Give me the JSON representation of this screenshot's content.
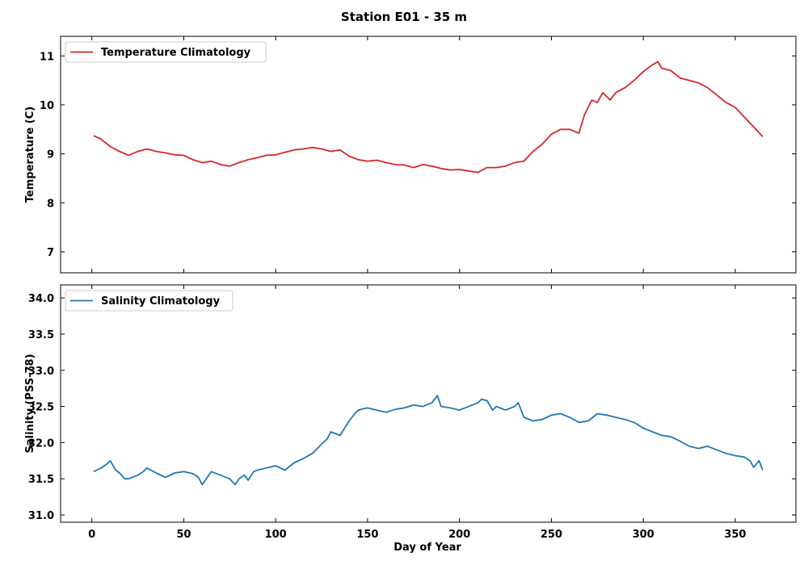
{
  "figure_title": "Station E01 - 35 m",
  "chart_data": [
    {
      "type": "line",
      "title": "",
      "xlabel": "",
      "ylabel": "Temperature (C)",
      "xlim": [
        -17,
        383
      ],
      "ylim": [
        6.57,
        11.4
      ],
      "yticks": [
        7,
        8,
        9,
        10,
        11
      ],
      "xticks": [
        0,
        50,
        100,
        150,
        200,
        250,
        300,
        350
      ],
      "show_xtick_labels": false,
      "grid": false,
      "legend_position": "top-left",
      "series": [
        {
          "name": "Temperature Climatology",
          "color": "#d62728",
          "x": [
            1,
            5,
            10,
            15,
            20,
            25,
            30,
            35,
            40,
            45,
            50,
            55,
            60,
            65,
            70,
            75,
            80,
            85,
            90,
            95,
            100,
            105,
            110,
            115,
            120,
            125,
            130,
            135,
            140,
            145,
            150,
            155,
            160,
            165,
            170,
            175,
            180,
            185,
            190,
            195,
            200,
            205,
            210,
            215,
            220,
            225,
            230,
            235,
            240,
            245,
            250,
            255,
            260,
            265,
            268,
            272,
            275,
            278,
            282,
            285,
            290,
            295,
            300,
            305,
            308,
            310,
            315,
            320,
            325,
            330,
            335,
            340,
            345,
            350,
            355,
            360,
            365
          ],
          "y": [
            9.37,
            9.3,
            9.15,
            9.05,
            8.97,
            9.05,
            9.1,
            9.05,
            9.02,
            8.98,
            8.97,
            8.88,
            8.82,
            8.85,
            8.78,
            8.75,
            8.82,
            8.88,
            8.92,
            8.97,
            8.98,
            9.03,
            9.08,
            9.1,
            9.13,
            9.1,
            9.05,
            9.08,
            8.95,
            8.88,
            8.85,
            8.87,
            8.82,
            8.78,
            8.77,
            8.72,
            8.78,
            8.75,
            8.7,
            8.67,
            8.68,
            8.65,
            8.62,
            8.72,
            8.72,
            8.75,
            8.82,
            8.85,
            9.05,
            9.2,
            9.4,
            9.5,
            9.5,
            9.42,
            9.8,
            10.1,
            10.05,
            10.25,
            10.1,
            10.25,
            10.35,
            10.5,
            10.68,
            10.82,
            10.88,
            10.75,
            10.7,
            10.55,
            10.5,
            10.45,
            10.35,
            10.2,
            10.05,
            9.95,
            9.75,
            9.55,
            9.35
          ]
        }
      ]
    },
    {
      "type": "line",
      "title": "",
      "xlabel": "Day of Year",
      "ylabel": "Salinity (PSS-78)",
      "xlim": [
        -17,
        383
      ],
      "ylim": [
        30.9,
        34.18
      ],
      "yticks": [
        31.0,
        31.5,
        32.0,
        32.5,
        33.0,
        33.5,
        34.0
      ],
      "ytick_labels": [
        "31.0",
        "31.5",
        "32.0",
        "32.5",
        "33.0",
        "33.5",
        "34.0"
      ],
      "xticks": [
        0,
        50,
        100,
        150,
        200,
        250,
        300,
        350
      ],
      "show_xtick_labels": true,
      "grid": false,
      "legend_position": "top-left",
      "series": [
        {
          "name": "Salinity Climatology",
          "color": "#1f77b4",
          "x": [
            1,
            5,
            8,
            10,
            13,
            15,
            18,
            20,
            25,
            28,
            30,
            35,
            40,
            45,
            50,
            55,
            58,
            60,
            65,
            70,
            75,
            78,
            80,
            83,
            85,
            88,
            90,
            95,
            100,
            105,
            110,
            115,
            120,
            125,
            128,
            130,
            135,
            140,
            143,
            145,
            148,
            150,
            155,
            160,
            165,
            170,
            175,
            180,
            185,
            188,
            190,
            195,
            200,
            205,
            210,
            212,
            215,
            218,
            220,
            225,
            230,
            232,
            235,
            240,
            245,
            250,
            255,
            260,
            265,
            270,
            275,
            280,
            285,
            290,
            295,
            300,
            305,
            310,
            315,
            320,
            325,
            330,
            335,
            340,
            345,
            350,
            355,
            358,
            360,
            363,
            365
          ],
          "y": [
            31.6,
            31.65,
            31.7,
            31.75,
            31.62,
            31.58,
            31.5,
            31.5,
            31.55,
            31.6,
            31.65,
            31.58,
            31.52,
            31.58,
            31.6,
            31.57,
            31.52,
            31.42,
            31.6,
            31.55,
            31.5,
            31.42,
            31.5,
            31.55,
            31.48,
            31.6,
            31.62,
            31.65,
            31.68,
            31.62,
            31.72,
            31.78,
            31.85,
            31.98,
            32.05,
            32.15,
            32.1,
            32.3,
            32.4,
            32.45,
            32.47,
            32.48,
            32.45,
            32.42,
            32.46,
            32.48,
            32.52,
            32.5,
            32.55,
            32.65,
            32.5,
            32.48,
            32.45,
            32.5,
            32.55,
            32.6,
            32.58,
            32.45,
            32.5,
            32.45,
            32.5,
            32.55,
            32.35,
            32.3,
            32.32,
            32.38,
            32.4,
            32.35,
            32.28,
            32.3,
            32.4,
            32.38,
            32.35,
            32.32,
            32.28,
            32.2,
            32.15,
            32.1,
            32.08,
            32.02,
            31.95,
            31.92,
            31.95,
            31.9,
            31.85,
            31.82,
            31.8,
            31.75,
            31.66,
            31.75,
            31.62
          ]
        }
      ]
    }
  ]
}
